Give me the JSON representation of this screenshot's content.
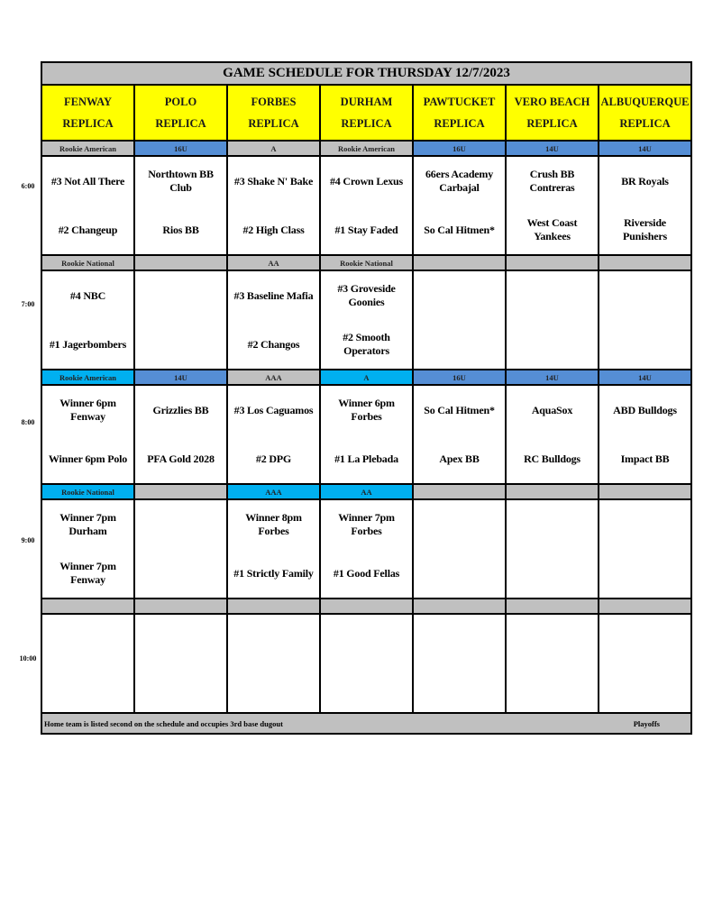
{
  "title": "GAME SCHEDULE FOR THURSDAY 12/7/2023",
  "colors": {
    "gray": "#c0c0c0",
    "blue": "#558ed5",
    "light-blue": "#00b0f0",
    "yellow": "#ffff00"
  },
  "fields": [
    {
      "name": "FENWAY",
      "sub": "REPLICA"
    },
    {
      "name": "POLO",
      "sub": "REPLICA"
    },
    {
      "name": "FORBES",
      "sub": "REPLICA"
    },
    {
      "name": "DURHAM",
      "sub": "REPLICA"
    },
    {
      "name": "PAWTUCKET",
      "sub": "REPLICA"
    },
    {
      "name": "VERO BEACH",
      "sub": "REPLICA"
    },
    {
      "name": "ALBUQUERQUE",
      "sub": "REPLICA"
    }
  ],
  "slots": [
    {
      "time": "6:00",
      "divisions": [
        {
          "label": "Rookie American",
          "color": "gray"
        },
        {
          "label": "16U",
          "color": "blue"
        },
        {
          "label": "A",
          "color": "gray"
        },
        {
          "label": "Rookie American",
          "color": "gray"
        },
        {
          "label": "16U",
          "color": "blue"
        },
        {
          "label": "14U",
          "color": "blue"
        },
        {
          "label": "14U",
          "color": "blue"
        }
      ],
      "games": [
        {
          "top": "#3 Not All There",
          "bottom": "#2 Changeup"
        },
        {
          "top": "Northtown BB Club",
          "bottom": "Rios BB"
        },
        {
          "top": "#3 Shake N' Bake",
          "bottom": "#2 High Class"
        },
        {
          "top": "#4 Crown Lexus",
          "bottom": "#1 Stay Faded"
        },
        {
          "top": "66ers Academy Carbajal",
          "bottom": "So Cal Hitmen*"
        },
        {
          "top": "Crush BB Contreras",
          "bottom": "West Coast Yankees"
        },
        {
          "top": "BR Royals",
          "bottom": "Riverside Punishers"
        }
      ]
    },
    {
      "time": "7:00",
      "divisions": [
        {
          "label": "Rookie National",
          "color": "gray"
        },
        {
          "label": "",
          "color": "gray"
        },
        {
          "label": "AA",
          "color": "gray"
        },
        {
          "label": "Rookie National",
          "color": "gray"
        },
        {
          "label": "",
          "color": "gray"
        },
        {
          "label": "",
          "color": "gray"
        },
        {
          "label": "",
          "color": "gray"
        }
      ],
      "games": [
        {
          "top": "#4 NBC",
          "bottom": "#1 Jagerbombers"
        },
        {
          "top": "",
          "bottom": ""
        },
        {
          "top": "#3 Baseline Mafia",
          "bottom": "#2 Changos"
        },
        {
          "top": "#3 Groveside Goonies",
          "bottom": "#2 Smooth Operators"
        },
        {
          "top": "",
          "bottom": ""
        },
        {
          "top": "",
          "bottom": ""
        },
        {
          "top": "",
          "bottom": ""
        }
      ]
    },
    {
      "time": "8:00",
      "divisions": [
        {
          "label": "Rookie American",
          "color": "light-blue"
        },
        {
          "label": "14U",
          "color": "blue"
        },
        {
          "label": "AAA",
          "color": "gray"
        },
        {
          "label": "A",
          "color": "light-blue"
        },
        {
          "label": "16U",
          "color": "blue"
        },
        {
          "label": "14U",
          "color": "blue"
        },
        {
          "label": "14U",
          "color": "blue"
        }
      ],
      "games": [
        {
          "top": "Winner 6pm Fenway",
          "bottom": "Winner 6pm Polo"
        },
        {
          "top": "Grizzlies BB",
          "bottom": "PFA Gold 2028"
        },
        {
          "top": "#3 Los Caguamos",
          "bottom": "#2 DPG"
        },
        {
          "top": "Winner 6pm Forbes",
          "bottom": "#1 La Plebada"
        },
        {
          "top": "So Cal Hitmen*",
          "bottom": "Apex BB"
        },
        {
          "top": "AquaSox",
          "bottom": "RC Bulldogs"
        },
        {
          "top": "ABD Bulldogs",
          "bottom": "Impact BB"
        }
      ]
    },
    {
      "time": "9:00",
      "divisions": [
        {
          "label": "Rookie National",
          "color": "light-blue"
        },
        {
          "label": "",
          "color": "gray"
        },
        {
          "label": "AAA",
          "color": "light-blue"
        },
        {
          "label": "AA",
          "color": "light-blue"
        },
        {
          "label": "",
          "color": "gray"
        },
        {
          "label": "",
          "color": "gray"
        },
        {
          "label": "",
          "color": "gray"
        }
      ],
      "games": [
        {
          "top": "Winner 7pm Durham",
          "bottom": "Winner 7pm Fenway"
        },
        {
          "top": "",
          "bottom": ""
        },
        {
          "top": "Winner 8pm Forbes",
          "bottom": "#1 Strictly Family"
        },
        {
          "top": "Winner 7pm Forbes",
          "bottom": "#1 Good Fellas"
        },
        {
          "top": "",
          "bottom": ""
        },
        {
          "top": "",
          "bottom": ""
        },
        {
          "top": "",
          "bottom": ""
        }
      ]
    },
    {
      "time": "10:00",
      "divisions": [
        {
          "label": "",
          "color": "gray"
        },
        {
          "label": "",
          "color": "gray"
        },
        {
          "label": "",
          "color": "gray"
        },
        {
          "label": "",
          "color": "gray"
        },
        {
          "label": "",
          "color": "gray"
        },
        {
          "label": "",
          "color": "gray"
        },
        {
          "label": "",
          "color": "gray"
        }
      ],
      "games": [
        {
          "top": "",
          "bottom": ""
        },
        {
          "top": "",
          "bottom": ""
        },
        {
          "top": "",
          "bottom": ""
        },
        {
          "top": "",
          "bottom": ""
        },
        {
          "top": "",
          "bottom": ""
        },
        {
          "top": "",
          "bottom": ""
        },
        {
          "top": "",
          "bottom": ""
        }
      ]
    }
  ],
  "footer": {
    "note": "Home team is listed second on the schedule and occupies 3rd base dugout",
    "legend": "Playoffs"
  }
}
